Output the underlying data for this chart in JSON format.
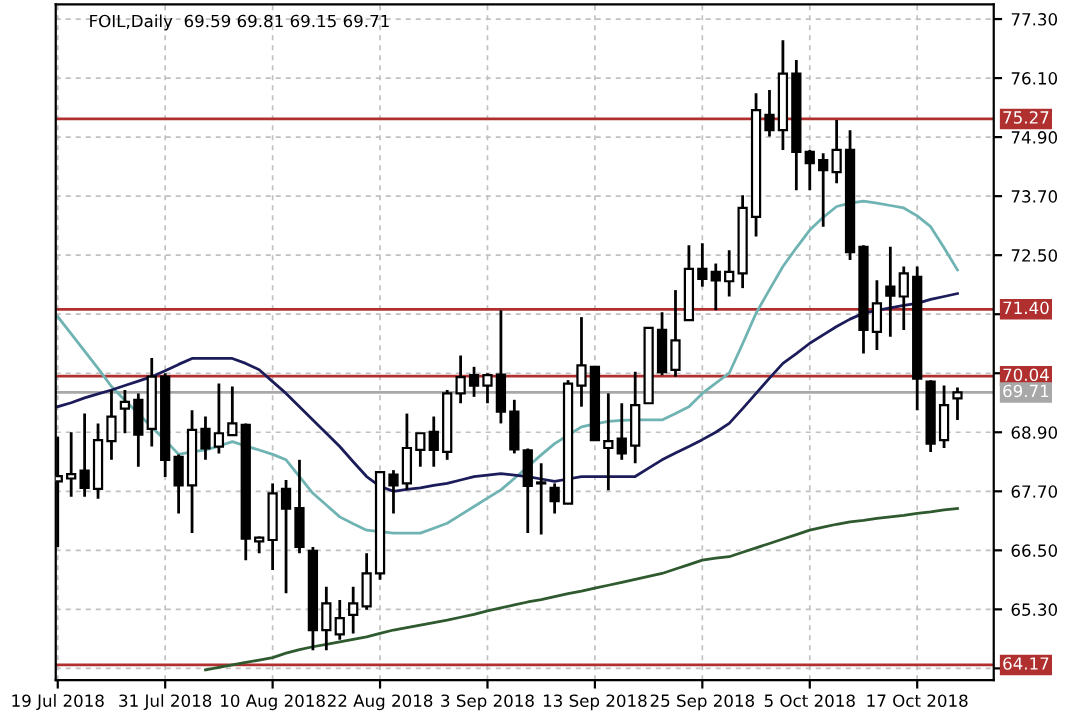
{
  "chart_data": {
    "type": "candlestick",
    "title": "FOIL,Daily  69.59 69.81 69.15 69.71",
    "categories": [
      "19 Jul 2018",
      null,
      null,
      null,
      null,
      null,
      null,
      null,
      "31 Jul 2018",
      null,
      null,
      null,
      null,
      null,
      null,
      null,
      "10 Aug 2018",
      null,
      null,
      null,
      null,
      null,
      null,
      null,
      "22 Aug 2018",
      null,
      null,
      null,
      null,
      null,
      null,
      null,
      "3 Sep 2018",
      null,
      null,
      null,
      null,
      null,
      null,
      null,
      "13 Sep 2018",
      null,
      null,
      null,
      null,
      null,
      null,
      null,
      "25 Sep 2018",
      null,
      null,
      null,
      null,
      null,
      null,
      null,
      "5 Oct 2018",
      null,
      null,
      null,
      null,
      null,
      null,
      null,
      "17 Oct 2018",
      null,
      null,
      null
    ],
    "ohlc": [
      [
        67.9,
        68.81,
        66.57,
        68.01
      ],
      [
        67.96,
        68.9,
        67.59,
        68.05
      ],
      [
        68.12,
        69.28,
        67.59,
        67.77
      ],
      [
        67.75,
        69.08,
        67.55,
        68.74
      ],
      [
        68.72,
        69.76,
        68.34,
        69.22
      ],
      [
        69.38,
        69.76,
        68.88,
        69.52
      ],
      [
        69.56,
        69.69,
        68.2,
        68.85
      ],
      [
        68.97,
        70.41,
        68.61,
        70.03
      ],
      [
        70.03,
        70.1,
        67.99,
        68.34
      ],
      [
        68.4,
        68.45,
        67.25,
        67.82
      ],
      [
        67.82,
        69.35,
        66.85,
        68.95
      ],
      [
        68.97,
        69.22,
        68.34,
        68.57
      ],
      [
        68.61,
        69.89,
        68.47,
        68.88
      ],
      [
        68.84,
        69.83,
        68.84,
        69.08
      ],
      [
        69.05,
        69.08,
        66.3,
        66.74
      ],
      [
        66.68,
        66.78,
        66.44,
        66.76
      ],
      [
        66.71,
        67.86,
        66.1,
        67.66
      ],
      [
        67.75,
        67.93,
        65.63,
        67.35
      ],
      [
        67.36,
        68.34,
        66.44,
        66.57
      ],
      [
        66.49,
        66.57,
        64.47,
        64.88
      ],
      [
        64.88,
        65.76,
        64.47,
        65.42
      ],
      [
        64.79,
        65.49,
        64.68,
        65.12
      ],
      [
        65.19,
        65.76,
        64.81,
        65.42
      ],
      [
        65.36,
        66.44,
        65.29,
        66.03
      ],
      [
        66.03,
        68.1,
        65.9,
        68.09
      ],
      [
        68.04,
        68.13,
        67.25,
        67.82
      ],
      [
        67.86,
        69.28,
        67.73,
        68.58
      ],
      [
        68.54,
        68.88,
        68.2,
        68.88
      ],
      [
        68.91,
        69.22,
        68.2,
        68.54
      ],
      [
        68.5,
        69.76,
        68.34,
        69.69
      ],
      [
        69.69,
        70.46,
        69.49,
        70.02
      ],
      [
        70.06,
        70.23,
        69.62,
        69.85
      ],
      [
        69.85,
        70.1,
        69.49,
        70.06
      ],
      [
        70.07,
        71.38,
        69.08,
        69.32
      ],
      [
        69.32,
        69.56,
        68.47,
        68.55
      ],
      [
        68.53,
        68.57,
        66.85,
        67.81
      ],
      [
        67.86,
        68.27,
        66.82,
        67.86
      ],
      [
        67.77,
        67.86,
        67.25,
        67.5
      ],
      [
        67.45,
        69.96,
        67.45,
        69.89
      ],
      [
        69.85,
        71.24,
        69.42,
        70.26
      ],
      [
        70.23,
        70.23,
        68.74,
        68.74
      ],
      [
        68.58,
        69.69,
        67.72,
        68.72
      ],
      [
        68.77,
        69.49,
        68.34,
        68.47
      ],
      [
        68.63,
        70.13,
        68.27,
        69.45
      ],
      [
        69.49,
        71.04,
        69.49,
        71.02
      ],
      [
        70.98,
        71.34,
        70.06,
        70.12
      ],
      [
        70.17,
        71.79,
        70.03,
        70.77
      ],
      [
        71.18,
        72.7,
        71.18,
        72.22
      ],
      [
        72.22,
        72.74,
        71.86,
        72.02
      ],
      [
        72.16,
        72.33,
        71.38,
        71.99
      ],
      [
        71.97,
        72.6,
        71.66,
        72.16
      ],
      [
        72.13,
        73.72,
        71.83,
        73.46
      ],
      [
        73.28,
        75.79,
        72.88,
        75.45
      ],
      [
        75.35,
        75.86,
        74.91,
        75.04
      ],
      [
        75.04,
        76.87,
        74.64,
        76.19
      ],
      [
        76.19,
        76.47,
        73.82,
        74.6
      ],
      [
        74.6,
        74.64,
        73.82,
        74.37
      ],
      [
        74.43,
        74.57,
        73.08,
        74.23
      ],
      [
        74.19,
        75.25,
        73.96,
        74.64
      ],
      [
        74.64,
        75.04,
        72.4,
        72.56
      ],
      [
        72.67,
        72.7,
        70.5,
        70.98
      ],
      [
        70.94,
        71.99,
        70.57,
        71.52
      ],
      [
        71.86,
        72.67,
        70.84,
        71.68
      ],
      [
        71.66,
        72.27,
        70.98,
        72.13
      ],
      [
        72.06,
        72.27,
        69.35,
        69.99
      ],
      [
        69.93,
        69.96,
        68.5,
        68.67
      ],
      [
        68.74,
        69.85,
        68.58,
        69.45
      ],
      [
        69.59,
        69.81,
        69.15,
        69.71
      ]
    ],
    "series": [
      {
        "type": "line",
        "color": "#6fb3b3",
        "values": [
          71.25,
          70.9,
          70.55,
          70.2,
          69.83,
          69.55,
          69.28,
          69.0,
          68.74,
          68.45,
          68.5,
          68.54,
          68.62,
          68.71,
          68.62,
          68.54,
          68.45,
          68.34,
          68.0,
          67.66,
          67.42,
          67.18,
          67.04,
          66.91,
          66.88,
          66.85,
          66.85,
          66.85,
          66.95,
          67.05,
          67.22,
          67.39,
          67.56,
          67.73,
          67.96,
          68.2,
          68.44,
          68.67,
          68.84,
          69.01,
          69.07,
          69.12,
          69.14,
          69.15,
          69.15,
          69.15,
          69.28,
          69.42,
          69.69,
          69.9,
          70.1,
          70.7,
          71.32,
          71.8,
          72.27,
          72.65,
          73.01,
          73.27,
          73.49,
          73.56,
          73.6,
          73.56,
          73.51,
          73.46,
          73.3,
          73.08,
          72.65,
          72.2
        ]
      },
      {
        "type": "line",
        "color": "#1c1c5a",
        "values": [
          69.42,
          69.5,
          69.6,
          69.68,
          69.76,
          69.85,
          69.94,
          70.03,
          70.15,
          70.28,
          70.4,
          70.4,
          70.4,
          70.4,
          70.3,
          70.17,
          69.93,
          69.69,
          69.42,
          69.15,
          68.88,
          68.61,
          68.3,
          68.0,
          67.8,
          67.7,
          67.74,
          67.77,
          67.82,
          67.86,
          67.93,
          68.0,
          68.03,
          68.06,
          68.03,
          68.0,
          67.95,
          67.9,
          67.95,
          68.0,
          68.0,
          68.0,
          68.0,
          68.0,
          68.17,
          68.34,
          68.48,
          68.61,
          68.75,
          68.9,
          69.08,
          69.38,
          69.69,
          70.0,
          70.3,
          70.5,
          70.71,
          70.88,
          71.05,
          71.2,
          71.32,
          71.38,
          71.43,
          71.48,
          71.52,
          71.6,
          71.66,
          71.72
        ]
      },
      {
        "type": "line",
        "color": "#2f5a2f",
        "values": [
          null,
          null,
          null,
          null,
          null,
          null,
          null,
          null,
          null,
          null,
          null,
          64.07,
          64.12,
          64.17,
          64.22,
          64.27,
          64.32,
          64.41,
          64.48,
          64.54,
          64.59,
          64.64,
          64.69,
          64.74,
          64.81,
          64.88,
          64.93,
          64.98,
          65.03,
          65.08,
          65.14,
          65.2,
          65.27,
          65.33,
          65.39,
          65.45,
          65.5,
          65.56,
          65.62,
          65.67,
          65.73,
          65.79,
          65.85,
          65.91,
          65.97,
          66.03,
          66.12,
          66.21,
          66.3,
          66.34,
          66.37,
          66.46,
          66.55,
          66.64,
          66.73,
          66.82,
          66.91,
          66.97,
          67.03,
          67.08,
          67.11,
          67.15,
          67.18,
          67.21,
          67.25,
          67.28,
          67.32,
          67.35
        ]
      }
    ],
    "ylim": [
      63.86,
      77.6
    ],
    "yticks": [
      {
        "value": 77.3,
        "label": "77.30"
      },
      {
        "value": 76.1,
        "label": "76.10"
      },
      {
        "value": 74.9,
        "label": "74.90"
      },
      {
        "value": 73.7,
        "label": "73.70"
      },
      {
        "value": 72.5,
        "label": "72.50"
      },
      {
        "value": 71.3,
        "label": null
      },
      {
        "value": 70.1,
        "label": null
      },
      {
        "value": 68.9,
        "label": "68.90"
      },
      {
        "value": 67.7,
        "label": "67.70"
      },
      {
        "value": 66.5,
        "label": "66.50"
      },
      {
        "value": 65.3,
        "label": "65.30"
      },
      {
        "value": 64.1,
        "label": null
      }
    ],
    "ref_lines": [
      {
        "axis": "y",
        "value": 75.27,
        "label": "75.27",
        "color": "#b03030"
      },
      {
        "axis": "y",
        "value": 71.4,
        "label": "71.40",
        "color": "#b03030"
      },
      {
        "axis": "y",
        "value": 70.04,
        "label": "70.04",
        "color": "#b03030"
      },
      {
        "axis": "y",
        "value": 69.71,
        "label": "69.71",
        "color": "#a8a8a8"
      },
      {
        "axis": "y",
        "value": 64.17,
        "label": "64.17",
        "color": "#b03030"
      }
    ],
    "grid": true
  }
}
